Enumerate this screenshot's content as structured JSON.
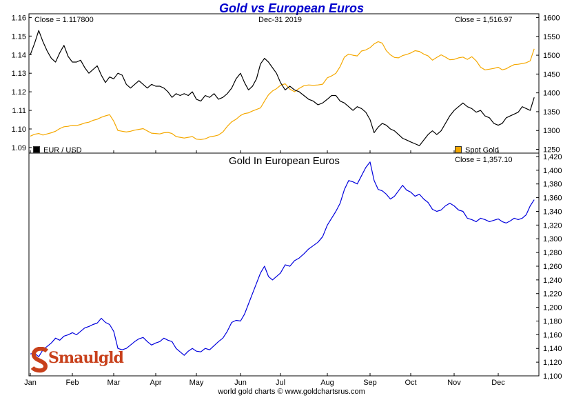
{
  "title": "Gold vs European Euros",
  "top_panel": {
    "close_left": "Close = 1.117800",
    "date": "Dec-31  2019",
    "close_right": "Close = 1,516.97",
    "legend_left": "EUR / USD",
    "legend_right": "Spot Gold"
  },
  "bottom_panel": {
    "title": "Gold In European Euros",
    "close": "Close = 1,357.10"
  },
  "footer": "world gold charts © www.goldchartsrus.com",
  "logo": "Smaulgld",
  "colors": {
    "eurusd": "#000000",
    "gold": "#f5a800",
    "euro_gold": "#0000dd",
    "title": "#0000cc",
    "logo": "#c8401b"
  },
  "chart_data": [
    {
      "type": "line",
      "x_ticks": [
        "Jan",
        "Feb",
        "Mar",
        "Apr",
        "May",
        "Jun",
        "Jul",
        "Aug",
        "Sep",
        "Oct",
        "Nov",
        "Dec"
      ],
      "left_axis": {
        "ticks": [
          "1.09",
          "1.10",
          "1.11",
          "1.12",
          "1.13",
          "1.14",
          "1.15",
          "1.16"
        ],
        "ylim": [
          1.087,
          1.162
        ]
      },
      "right_axis": {
        "ticks": [
          "1250",
          "1300",
          "1350",
          "1400",
          "1450",
          "1500",
          "1550",
          "1600"
        ],
        "ylim": [
          1240,
          1610
        ]
      },
      "series": [
        {
          "name": "EUR / USD",
          "axis": "left",
          "x": [
            0,
            0.1,
            0.2,
            0.3,
            0.4,
            0.5,
            0.6,
            0.7,
            0.8,
            0.9,
            1.0,
            1.1,
            1.2,
            1.3,
            1.4,
            1.5,
            1.6,
            1.7,
            1.8,
            1.9,
            2.0,
            2.1,
            2.2,
            2.3,
            2.4,
            2.5,
            2.6,
            2.7,
            2.8,
            2.9,
            3.0,
            3.1,
            3.2,
            3.3,
            3.4,
            3.5,
            3.6,
            3.7,
            3.8,
            3.9,
            4.0,
            4.1,
            4.2,
            4.3,
            4.4,
            4.5,
            4.6,
            4.7,
            4.8,
            4.9,
            5.0,
            5.1,
            5.2,
            5.3,
            5.4,
            5.5,
            5.6,
            5.7,
            5.8,
            5.9,
            6.0,
            6.1,
            6.2,
            6.3,
            6.4,
            6.5,
            6.6,
            6.7,
            6.8,
            6.9,
            7.0,
            7.1,
            7.2,
            7.3,
            7.4,
            7.5,
            7.6,
            7.7,
            7.8,
            7.9,
            8.0,
            8.1,
            8.2,
            8.3,
            8.4,
            8.5,
            8.6,
            8.7,
            8.8,
            8.9,
            9.0,
            9.1,
            9.2,
            9.3,
            9.4,
            9.5,
            9.6,
            9.7,
            9.8,
            9.9,
            10.0,
            10.1,
            10.2,
            10.3,
            10.4,
            10.5,
            10.6,
            10.7,
            10.8,
            10.9,
            11.0,
            11.1,
            11.2,
            11.3,
            11.4,
            11.5,
            11.6,
            11.7,
            11.8,
            11.9
          ],
          "values": [
            1.14,
            1.146,
            1.153,
            1.147,
            1.142,
            1.138,
            1.136,
            1.141,
            1.145,
            1.139,
            1.136,
            1.136,
            1.137,
            1.133,
            1.13,
            1.132,
            1.134,
            1.129,
            1.125,
            1.128,
            1.127,
            1.13,
            1.129,
            1.124,
            1.122,
            1.124,
            1.126,
            1.124,
            1.122,
            1.124,
            1.123,
            1.123,
            1.122,
            1.12,
            1.117,
            1.119,
            1.118,
            1.119,
            1.118,
            1.12,
            1.116,
            1.115,
            1.118,
            1.117,
            1.119,
            1.116,
            1.117,
            1.119,
            1.122,
            1.127,
            1.13,
            1.125,
            1.121,
            1.123,
            1.127,
            1.135,
            1.138,
            1.136,
            1.133,
            1.13,
            1.125,
            1.121,
            1.123,
            1.121,
            1.12,
            1.118,
            1.116,
            1.115,
            1.113,
            1.114,
            1.116,
            1.118,
            1.118,
            1.115,
            1.114,
            1.112,
            1.11,
            1.112,
            1.111,
            1.109,
            1.105,
            1.098,
            1.101,
            1.103,
            1.102,
            1.1,
            1.099,
            1.097,
            1.095,
            1.094,
            1.093,
            1.092,
            1.091,
            1.094,
            1.097,
            1.099,
            1.097,
            1.099,
            1.103,
            1.107,
            1.11,
            1.112,
            1.114,
            1.112,
            1.111,
            1.109,
            1.11,
            1.107,
            1.106,
            1.103,
            1.102,
            1.103,
            1.106,
            1.107,
            1.108,
            1.109,
            1.112,
            1.111,
            1.11,
            1.117
          ]
        },
        {
          "name": "Spot Gold",
          "axis": "right",
          "x": [
            0,
            0.1,
            0.2,
            0.3,
            0.4,
            0.5,
            0.6,
            0.7,
            0.8,
            0.9,
            1.0,
            1.1,
            1.2,
            1.3,
            1.4,
            1.5,
            1.6,
            1.7,
            1.8,
            1.9,
            2.0,
            2.1,
            2.2,
            2.3,
            2.4,
            2.5,
            2.6,
            2.7,
            2.8,
            2.9,
            3.0,
            3.1,
            3.2,
            3.3,
            3.4,
            3.5,
            3.6,
            3.7,
            3.8,
            3.9,
            4.0,
            4.1,
            4.2,
            4.3,
            4.4,
            4.5,
            4.6,
            4.7,
            4.8,
            4.9,
            5.0,
            5.1,
            5.2,
            5.3,
            5.4,
            5.5,
            5.6,
            5.7,
            5.8,
            5.9,
            6.0,
            6.1,
            6.2,
            6.3,
            6.4,
            6.5,
            6.6,
            6.7,
            6.8,
            6.9,
            7.0,
            7.1,
            7.2,
            7.3,
            7.4,
            7.5,
            7.6,
            7.7,
            7.8,
            7.9,
            8.0,
            8.1,
            8.2,
            8.3,
            8.4,
            8.5,
            8.6,
            8.7,
            8.8,
            8.9,
            9.0,
            9.1,
            9.2,
            9.3,
            9.4,
            9.5,
            9.6,
            9.7,
            9.8,
            9.9,
            10.0,
            10.1,
            10.2,
            10.3,
            10.4,
            10.5,
            10.6,
            10.7,
            10.8,
            10.9,
            11.0,
            11.1,
            11.2,
            11.3,
            11.4,
            11.5,
            11.6,
            11.7,
            11.8,
            11.9
          ],
          "values": [
            1285,
            1290,
            1292,
            1288,
            1291,
            1294,
            1298,
            1305,
            1310,
            1311,
            1314,
            1313,
            1316,
            1320,
            1322,
            1327,
            1330,
            1335,
            1339,
            1342,
            1325,
            1300,
            1298,
            1296,
            1298,
            1301,
            1303,
            1305,
            1299,
            1293,
            1292,
            1291,
            1294,
            1295,
            1292,
            1284,
            1282,
            1280,
            1282,
            1284,
            1277,
            1276,
            1278,
            1283,
            1285,
            1288,
            1296,
            1311,
            1323,
            1330,
            1340,
            1345,
            1347,
            1352,
            1356,
            1360,
            1378,
            1395,
            1405,
            1411,
            1420,
            1424,
            1410,
            1403,
            1412,
            1419,
            1421,
            1420,
            1421,
            1423,
            1440,
            1445,
            1452,
            1470,
            1495,
            1503,
            1500,
            1498,
            1511,
            1514,
            1520,
            1530,
            1536,
            1532,
            1512,
            1501,
            1494,
            1493,
            1499,
            1502,
            1506,
            1512,
            1510,
            1503,
            1498,
            1487,
            1494,
            1501,
            1495,
            1488,
            1489,
            1493,
            1495,
            1489,
            1496,
            1485,
            1468,
            1461,
            1463,
            1465,
            1468,
            1461,
            1464,
            1470,
            1475,
            1476,
            1478,
            1480,
            1485,
            1517
          ]
        }
      ]
    },
    {
      "type": "line",
      "title": "Gold In European Euros",
      "x_ticks": [
        "Jan",
        "Feb",
        "Mar",
        "Apr",
        "May",
        "Jun",
        "Jul",
        "Aug",
        "Sep",
        "Oct",
        "Nov",
        "Dec"
      ],
      "y_axis": {
        "ticks": [
          "1,100",
          "1,120",
          "1,140",
          "1,160",
          "1,180",
          "1,200",
          "1,220",
          "1,240",
          "1,260",
          "1,280",
          "1,300",
          "1,320",
          "1,340",
          "1,360",
          "1,380",
          "1,400",
          "1,420"
        ],
        "ylim": [
          1100,
          1425
        ]
      },
      "series": [
        {
          "name": "Gold In European Euros",
          "x": [
            0,
            0.1,
            0.2,
            0.3,
            0.4,
            0.5,
            0.6,
            0.7,
            0.8,
            0.9,
            1.0,
            1.1,
            1.2,
            1.3,
            1.4,
            1.5,
            1.6,
            1.7,
            1.8,
            1.9,
            2.0,
            2.1,
            2.2,
            2.3,
            2.4,
            2.5,
            2.6,
            2.7,
            2.8,
            2.9,
            3.0,
            3.1,
            3.2,
            3.3,
            3.4,
            3.5,
            3.6,
            3.7,
            3.8,
            3.9,
            4.0,
            4.1,
            4.2,
            4.3,
            4.4,
            4.5,
            4.6,
            4.7,
            4.8,
            4.9,
            5.0,
            5.1,
            5.2,
            5.3,
            5.4,
            5.5,
            5.6,
            5.7,
            5.8,
            5.9,
            6.0,
            6.1,
            6.2,
            6.3,
            6.4,
            6.5,
            6.6,
            6.7,
            6.8,
            6.9,
            7.0,
            7.1,
            7.2,
            7.3,
            7.4,
            7.5,
            7.6,
            7.7,
            7.8,
            7.9,
            8.0,
            8.1,
            8.2,
            8.3,
            8.4,
            8.5,
            8.6,
            8.7,
            8.8,
            8.9,
            9.0,
            9.1,
            9.2,
            9.3,
            9.4,
            9.5,
            9.6,
            9.7,
            9.8,
            9.9,
            10.0,
            10.1,
            10.2,
            10.3,
            10.4,
            10.5,
            10.6,
            10.7,
            10.8,
            10.9,
            11.0,
            11.1,
            11.2,
            11.3,
            11.4,
            11.5,
            11.6,
            11.7,
            11.8,
            11.9
          ],
          "values": [
            1132,
            1133,
            1128,
            1138,
            1143,
            1148,
            1155,
            1152,
            1158,
            1160,
            1163,
            1160,
            1165,
            1170,
            1172,
            1175,
            1177,
            1184,
            1178,
            1175,
            1165,
            1140,
            1138,
            1140,
            1145,
            1150,
            1154,
            1156,
            1150,
            1145,
            1148,
            1150,
            1155,
            1152,
            1150,
            1140,
            1135,
            1130,
            1136,
            1140,
            1136,
            1135,
            1140,
            1138,
            1144,
            1150,
            1155,
            1165,
            1178,
            1181,
            1180,
            1190,
            1205,
            1220,
            1235,
            1250,
            1260,
            1245,
            1240,
            1245,
            1250,
            1262,
            1260,
            1268,
            1272,
            1278,
            1285,
            1290,
            1295,
            1303,
            1320,
            1330,
            1340,
            1352,
            1372,
            1385,
            1383,
            1380,
            1392,
            1404,
            1412,
            1385,
            1372,
            1370,
            1365,
            1358,
            1362,
            1370,
            1378,
            1371,
            1368,
            1362,
            1365,
            1358,
            1353,
            1343,
            1340,
            1342,
            1348,
            1352,
            1348,
            1342,
            1340,
            1330,
            1328,
            1325,
            1330,
            1328,
            1325,
            1327,
            1329,
            1325,
            1323,
            1326,
            1330,
            1328,
            1330,
            1335,
            1348,
            1357
          ]
        }
      ]
    }
  ]
}
